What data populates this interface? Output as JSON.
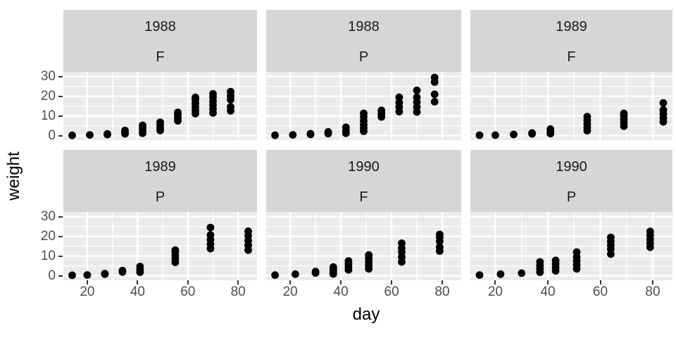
{
  "figure": {
    "x_axis_title": "day",
    "y_axis_title": "weight"
  },
  "chart_data": {
    "type": "scatter",
    "title": "",
    "xlabel": "day",
    "ylabel": "weight",
    "legend": "none",
    "grid": "on",
    "facet_layout": {
      "rows": 2,
      "cols": 3,
      "strip_lines": [
        "year",
        "variety"
      ]
    },
    "x_ticks": [
      20,
      40,
      60,
      80
    ],
    "y_ticks": [
      0,
      10,
      20,
      30
    ],
    "x_minor": [
      30,
      50,
      70
    ],
    "y_minor": [
      5,
      15,
      25
    ],
    "xlim": [
      10.5,
      87.5
    ],
    "ylim": [
      -2.3,
      32.4
    ],
    "colors": {
      "point": "#000000",
      "panel_bg": "#ebebeb",
      "strip_bg": "#d6d6d6",
      "grid": "#ffffff",
      "axis_text": "#4d4d4d",
      "strip_text": "#1a1a1a"
    },
    "facets": [
      {
        "row": 0,
        "col": 0,
        "year": "1988",
        "variety": "F",
        "points": [
          [
            14,
            0.15
          ],
          [
            21,
            0.35
          ],
          [
            28,
            0.55
          ],
          [
            28,
            0.85
          ],
          [
            35,
            0.9
          ],
          [
            35,
            1.7
          ],
          [
            35,
            2.6
          ],
          [
            42,
            1.2
          ],
          [
            42,
            2.5
          ],
          [
            42,
            3.8
          ],
          [
            42,
            5.2
          ],
          [
            49,
            2.6
          ],
          [
            49,
            3.9
          ],
          [
            49,
            5.3
          ],
          [
            49,
            6.8
          ],
          [
            56,
            7.5
          ],
          [
            56,
            9.0
          ],
          [
            56,
            10.5
          ],
          [
            56,
            11.8
          ],
          [
            63,
            11.2
          ],
          [
            63,
            12.8
          ],
          [
            63,
            14.6
          ],
          [
            63,
            16.4
          ],
          [
            63,
            18.3
          ],
          [
            63,
            19.4
          ],
          [
            70,
            11.5
          ],
          [
            70,
            13.5
          ],
          [
            70,
            15.5
          ],
          [
            70,
            17.5
          ],
          [
            70,
            19.5
          ],
          [
            70,
            21.2
          ],
          [
            77,
            12.6
          ],
          [
            77,
            14.6
          ],
          [
            77,
            18.3
          ],
          [
            77,
            20.2
          ],
          [
            77,
            22.3
          ]
        ]
      },
      {
        "row": 0,
        "col": 1,
        "year": "1988",
        "variety": "P",
        "points": [
          [
            14,
            0.2
          ],
          [
            21,
            0.4
          ],
          [
            28,
            0.6
          ],
          [
            28,
            0.95
          ],
          [
            35,
            1.0
          ],
          [
            35,
            1.9
          ],
          [
            42,
            1.2
          ],
          [
            42,
            2.6
          ],
          [
            42,
            4.2
          ],
          [
            49,
            2.2
          ],
          [
            49,
            3.8
          ],
          [
            49,
            5.5
          ],
          [
            49,
            7.5
          ],
          [
            49,
            9.5
          ],
          [
            49,
            11.3
          ],
          [
            56,
            9.5
          ],
          [
            56,
            11.2
          ],
          [
            56,
            12.8
          ],
          [
            63,
            12.2
          ],
          [
            63,
            14.5
          ],
          [
            63,
            16.8
          ],
          [
            63,
            19.5
          ],
          [
            70,
            12.0
          ],
          [
            70,
            14.5
          ],
          [
            70,
            17.0
          ],
          [
            70,
            19.5
          ],
          [
            70,
            23.0
          ],
          [
            77,
            17.2
          ],
          [
            77,
            21.0
          ],
          [
            77,
            27.2
          ],
          [
            77,
            29.5
          ]
        ]
      },
      {
        "row": 0,
        "col": 2,
        "year": "1989",
        "variety": "F",
        "points": [
          [
            14,
            0.2
          ],
          [
            20,
            0.25
          ],
          [
            27,
            0.6
          ],
          [
            34,
            0.9
          ],
          [
            34,
            1.3
          ],
          [
            41,
            1.0
          ],
          [
            41,
            2.1
          ],
          [
            41,
            3.3
          ],
          [
            55,
            2.5
          ],
          [
            55,
            4.2
          ],
          [
            55,
            6.0
          ],
          [
            55,
            7.8
          ],
          [
            55,
            9.6
          ],
          [
            69,
            4.8
          ],
          [
            69,
            6.5
          ],
          [
            69,
            8.3
          ],
          [
            69,
            10.0
          ],
          [
            69,
            11.3
          ],
          [
            84,
            7.0
          ],
          [
            84,
            9.0
          ],
          [
            84,
            11.0
          ],
          [
            84,
            13.0
          ],
          [
            84,
            16.6
          ]
        ]
      },
      {
        "row": 1,
        "col": 0,
        "year": "1989",
        "variety": "P",
        "points": [
          [
            14,
            0.25
          ],
          [
            20,
            0.4
          ],
          [
            27,
            0.8
          ],
          [
            27,
            1.1
          ],
          [
            34,
            1.9
          ],
          [
            34,
            2.6
          ],
          [
            41,
            1.8
          ],
          [
            41,
            3.2
          ],
          [
            41,
            4.7
          ],
          [
            55,
            6.8
          ],
          [
            55,
            8.5
          ],
          [
            55,
            10.2
          ],
          [
            55,
            12.0
          ],
          [
            55,
            13.0
          ],
          [
            69,
            13.8
          ],
          [
            69,
            16.0
          ],
          [
            69,
            18.3
          ],
          [
            69,
            20.7
          ],
          [
            69,
            24.5
          ],
          [
            84,
            13.0
          ],
          [
            84,
            15.4
          ],
          [
            84,
            17.8
          ],
          [
            84,
            20.3
          ],
          [
            84,
            22.6
          ]
        ]
      },
      {
        "row": 1,
        "col": 1,
        "year": "1990",
        "variety": "F",
        "points": [
          [
            14,
            0.3
          ],
          [
            22,
            0.8
          ],
          [
            30,
            1.4
          ],
          [
            30,
            2.1
          ],
          [
            37,
            0.9
          ],
          [
            37,
            2.1
          ],
          [
            37,
            3.3
          ],
          [
            37,
            4.4
          ],
          [
            43,
            3.0
          ],
          [
            43,
            4.5
          ],
          [
            43,
            6.0
          ],
          [
            43,
            7.5
          ],
          [
            51,
            3.5
          ],
          [
            51,
            5.2
          ],
          [
            51,
            7.0
          ],
          [
            51,
            8.8
          ],
          [
            51,
            10.5
          ],
          [
            64,
            7.0
          ],
          [
            64,
            9.5
          ],
          [
            64,
            12.0
          ],
          [
            64,
            14.0
          ],
          [
            64,
            16.5
          ],
          [
            79,
            12.5
          ],
          [
            79,
            14.5
          ],
          [
            79,
            17.5
          ],
          [
            79,
            19.5
          ],
          [
            79,
            21.0
          ]
        ]
      },
      {
        "row": 1,
        "col": 2,
        "year": "1990",
        "variety": "P",
        "points": [
          [
            14,
            0.35
          ],
          [
            22,
            0.8
          ],
          [
            30,
            1.3
          ],
          [
            37,
            1.8
          ],
          [
            37,
            3.5
          ],
          [
            37,
            5.2
          ],
          [
            37,
            7.0
          ],
          [
            43,
            2.5
          ],
          [
            43,
            4.2
          ],
          [
            43,
            6.0
          ],
          [
            43,
            7.8
          ],
          [
            51,
            3.5
          ],
          [
            51,
            5.5
          ],
          [
            51,
            7.5
          ],
          [
            51,
            9.5
          ],
          [
            51,
            12.0
          ],
          [
            64,
            11.0
          ],
          [
            64,
            13.5
          ],
          [
            64,
            15.5
          ],
          [
            64,
            17.5
          ],
          [
            64,
            19.5
          ],
          [
            79,
            14.5
          ],
          [
            79,
            16.5
          ],
          [
            79,
            18.5
          ],
          [
            79,
            20.5
          ],
          [
            79,
            22.5
          ]
        ]
      }
    ]
  }
}
